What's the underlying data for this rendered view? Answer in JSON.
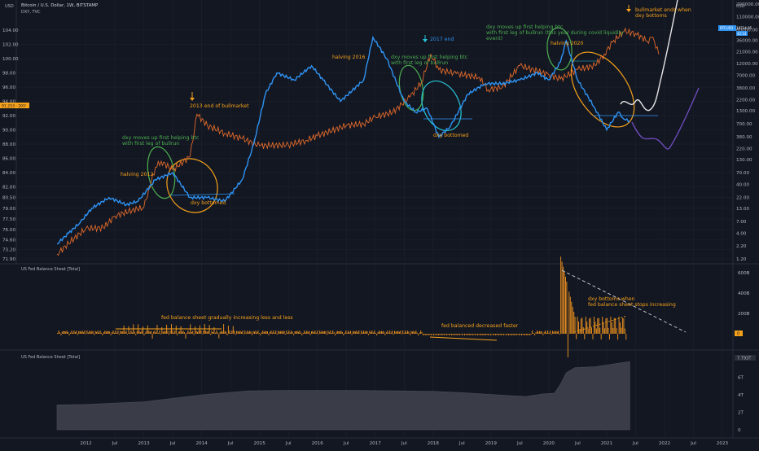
{
  "header": {
    "usd_left": "USD",
    "main_title": "Bitcoin / U.S. Dollar, 1W, BITSTAMP",
    "sub_title": "DXY, TVC",
    "usd_right": "USD"
  },
  "colors": {
    "background": "#131722",
    "btc": "#e0692a",
    "dxy": "#2f93f2",
    "annotation_green": "#4caf50",
    "annotation_orange": "#f7a21b",
    "white_projection": "#e6e6e6",
    "purple_projection": "#6c4ab6"
  },
  "price_badges": {
    "btc": "BTCUSD · 18714.95",
    "btc_sub": "42:14",
    "dxy_left": "91.253 · DXY"
  },
  "panels": [
    {
      "label": "",
      "fed_label": ""
    },
    {
      "label": "US Fed Balance Sheet [Total]"
    },
    {
      "label": "US Fed Balance Sheet [Total]",
      "value_badge": "7.793T"
    }
  ],
  "annotations": [
    {
      "text": "2013 end of bullmarket",
      "color": "orange",
      "arrow": true
    },
    {
      "text": "halving 2012",
      "color": "orange"
    },
    {
      "text": "dxy moves up first helping btc",
      "color": "green"
    },
    {
      "text": "with first leg of bullrun",
      "color": "green"
    },
    {
      "text": "dxy bottomed",
      "color": "orange"
    },
    {
      "text": "halving 2016",
      "color": "orange"
    },
    {
      "text": "dxy moves up first helping btc",
      "color": "green"
    },
    {
      "text": "with first leg of bullrun",
      "color": "green"
    },
    {
      "text": "2017 end",
      "color": "blue",
      "arrow": true
    },
    {
      "text": "dxy bottomed",
      "color": "orange"
    },
    {
      "text": "dxy moves up first helping btc",
      "color": "green"
    },
    {
      "text": "with first leg of bullrun (this year during covid liquidity",
      "color": "green"
    },
    {
      "text": "event)",
      "color": "green"
    },
    {
      "text": "halving 2020",
      "color": "orange"
    },
    {
      "text": "bullmarket ends when",
      "color": "orange",
      "arrow": true
    },
    {
      "text": "dxy bottoms",
      "color": "orange"
    },
    {
      "text": "fed balance sheet gradually increasing less and less",
      "color": "orange"
    },
    {
      "text": "fed balanced decreased faster",
      "color": "orange"
    },
    {
      "text": "dxy bottoms when",
      "color": "orange"
    },
    {
      "text": "fed balance sheet stops increasing",
      "color": "orange"
    }
  ],
  "chart_data": [
    {
      "type": "line",
      "title": "Bitcoin / U.S. Dollar, 1W, BITSTAMP",
      "x_axis": {
        "tick_labels": [
          "2012",
          "Jul",
          "2013",
          "Jul",
          "2014",
          "Jul",
          "2015",
          "Jul",
          "2016",
          "Jul",
          "2017",
          "Jul",
          "2018",
          "Jul",
          "2019",
          "Jul",
          "2020",
          "Jul",
          "2021",
          "Jul",
          "2022",
          "Jul",
          "2023"
        ]
      },
      "y_axis_left_label": "USD",
      "y_axis_left": {
        "ticks": [
          71.9,
          73.2,
          74.6,
          76.0,
          77.5,
          79.0,
          80.5,
          82.0,
          84.0,
          86.0,
          88.0,
          90.0,
          92.0,
          94.0,
          96.0,
          98.0,
          100.0,
          102.0,
          104.0
        ],
        "range": [
          71.9,
          104.8
        ]
      },
      "y_axis_right_label": "USD",
      "y_axis_right": {
        "ticks": [
          "200000.00",
          "110000.00",
          "60000.00",
          "36000.00",
          "21000.00",
          "12000.00",
          "7000.00",
          "3800.00",
          "2200.00",
          "1300.00",
          "700.00",
          "380.00",
          "220.00",
          "130.00",
          "70.00",
          "40.00",
          "22.00",
          "13.00",
          "7.00",
          "4.00",
          "2.20",
          "1.20"
        ],
        "scale": "log"
      },
      "series": [
        {
          "name": "BTCUSD",
          "axis": "right",
          "x": [
            2011.5,
            2011.8,
            2012.0,
            2012.3,
            2012.5,
            2012.8,
            2013.0,
            2013.2,
            2013.3,
            2013.5,
            2013.8,
            2013.92,
            2014.1,
            2014.4,
            2014.7,
            2015.0,
            2015.5,
            2015.8,
            2016.0,
            2016.5,
            2016.8,
            2017.0,
            2017.3,
            2017.6,
            2017.8,
            2017.96,
            2018.1,
            2018.4,
            2018.8,
            2018.95,
            2019.2,
            2019.5,
            2019.8,
            2020.0,
            2020.2,
            2020.5,
            2020.8,
            2020.96,
            2021.1,
            2021.3,
            2021.5,
            2021.7,
            2021.8,
            2021.9
          ],
          "values": [
            1.5,
            3.2,
            5.0,
            5.2,
            9.0,
            12.0,
            13.5,
            90.0,
            120.0,
            80.0,
            150.0,
            1100,
            650,
            450,
            350,
            250,
            260,
            320,
            400,
            650,
            700,
            980,
            1200,
            2500,
            5000,
            19000,
            9000,
            7500,
            6300,
            3500,
            4000,
            11000,
            8500,
            7200,
            5800,
            9100,
            11000,
            19000,
            33000,
            55000,
            50000,
            35000,
            42000,
            18714.95
          ]
        },
        {
          "name": "DXY",
          "axis": "left",
          "x": [
            2011.5,
            2011.7,
            2011.9,
            2012.1,
            2012.4,
            2012.7,
            2012.9,
            2013.2,
            2013.5,
            2013.8,
            2014.1,
            2014.4,
            2014.7,
            2014.9,
            2015.1,
            2015.3,
            2015.6,
            2015.9,
            2016.1,
            2016.4,
            2016.8,
            2016.96,
            2017.2,
            2017.5,
            2017.7,
            2017.9,
            2018.1,
            2018.3,
            2018.6,
            2018.9,
            2019.2,
            2019.5,
            2019.8,
            2020.0,
            2020.2,
            2020.3,
            2020.5,
            2020.8,
            2021.0,
            2021.2,
            2021.3,
            2021.4
          ],
          "values": [
            74.0,
            75.5,
            77.0,
            79.0,
            80.5,
            79.5,
            80.0,
            83.0,
            84.0,
            80.5,
            80.5,
            80.0,
            83.0,
            88.0,
            95.0,
            98.0,
            97.0,
            99.0,
            97.0,
            94.0,
            97.0,
            103.0,
            100.0,
            94.0,
            92.5,
            93.0,
            89.0,
            90.5,
            95.0,
            96.5,
            96.5,
            97.0,
            98.0,
            97.0,
            99.5,
            102.5,
            97.0,
            93.0,
            90.0,
            92.5,
            91.5,
            91.25
          ]
        }
      ]
    },
    {
      "type": "bar",
      "title": "US Fed Balance Sheet [Total]",
      "description_of_series": "weekly change",
      "y_axis_right": {
        "ticks": [
          "600B",
          "400B",
          "200B",
          "0"
        ]
      },
      "value_badge": "0"
    },
    {
      "type": "area",
      "title": "US Fed Balance Sheet [Total]",
      "y_axis_right": {
        "ticks": [
          "6T",
          "4T",
          "2T",
          "0"
        ]
      },
      "value_badge": "7.793T",
      "x": [
        2011.5,
        2012.0,
        2013.0,
        2014.0,
        2014.8,
        2015.5,
        2016.5,
        2017.5,
        2018.0,
        2018.5,
        2019.0,
        2019.6,
        2019.9,
        2020.1,
        2020.2,
        2020.3,
        2020.45,
        2020.8,
        2021.0,
        2021.3,
        2021.4
      ],
      "values": [
        2.85,
        2.9,
        3.2,
        4.0,
        4.45,
        4.5,
        4.5,
        4.45,
        4.4,
        4.25,
        4.05,
        3.8,
        4.1,
        4.2,
        5.2,
        6.5,
        7.1,
        7.2,
        7.4,
        7.7,
        7.793
      ]
    }
  ]
}
